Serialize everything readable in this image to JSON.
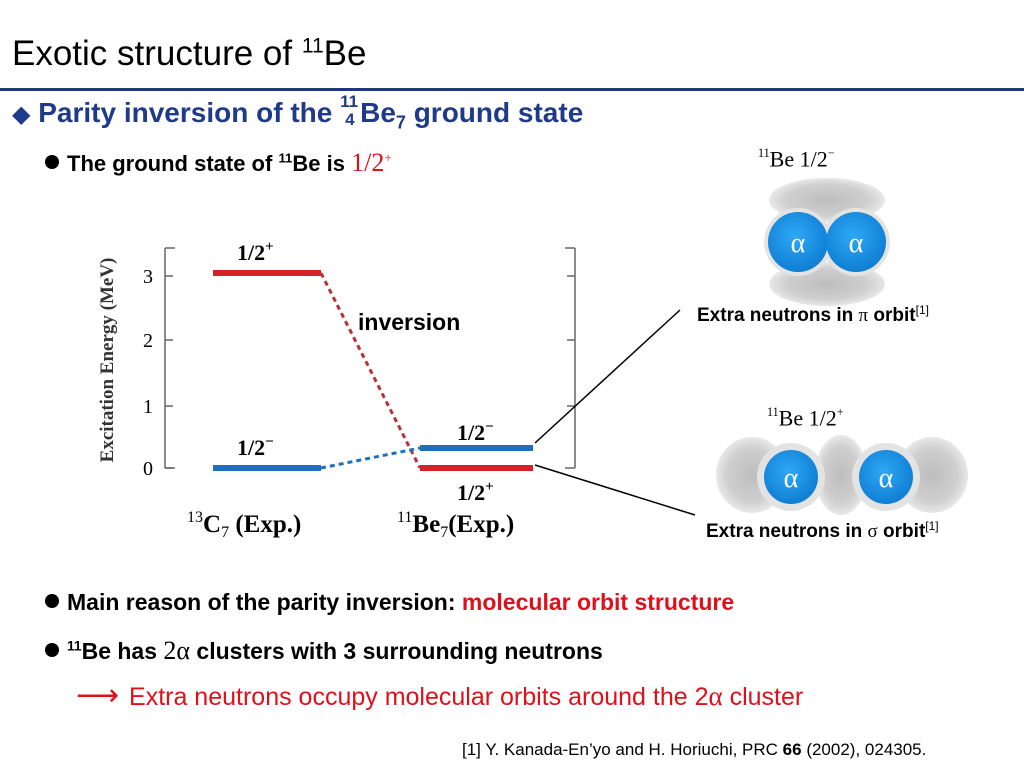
{
  "slide": {
    "title_prefix": "Exotic structure of ",
    "title_mass": "11",
    "title_element": "Be"
  },
  "heading": {
    "diamond": "◆",
    "prefix": "Parity inversion of the ",
    "mass": "11",
    "atomic": "4",
    "element": "Be",
    "neutrons": "7",
    "suffix": " ground state"
  },
  "bullet1": {
    "prefix": "The ground state of ",
    "mass": "11",
    "middle": "Be is ",
    "value": "1/2",
    "parity": "+"
  },
  "diagram": {
    "y_axis_label": "Excitation Energy (MeV)",
    "y_ticks": [
      "0",
      "1",
      "2",
      "3"
    ],
    "inversion_label": "inversion",
    "c13_levels": [
      {
        "label": "1/2",
        "parity": "+",
        "energy": 3.1,
        "color": "#d62226"
      },
      {
        "label": "1/2",
        "parity": "−",
        "energy": 0.0,
        "color": "#1f6fbf"
      }
    ],
    "be11_levels": [
      {
        "label": "1/2",
        "parity": "−",
        "energy": 0.32,
        "color": "#1f6fbf"
      },
      {
        "label": "1/2",
        "parity": "+",
        "energy": 0.0,
        "color": "#d62226"
      }
    ],
    "c13_caption": {
      "mass": "13",
      "element": "C",
      "neutrons": "7",
      "suffix": " (Exp.)"
    },
    "be11_caption": {
      "mass": "11",
      "element": "Be",
      "neutrons": "7",
      "suffix": "(Exp.)"
    }
  },
  "pi_panel": {
    "label_mass": "11",
    "label_text": "Be 1/2",
    "label_parity": "−",
    "alpha": "α",
    "caption_prefix": "Extra neutrons in ",
    "caption_symbol": "π",
    "caption_suffix": " orbit",
    "caption_ref": "[1]"
  },
  "sigma_panel": {
    "label_mass": "11",
    "label_text": "Be 1/2",
    "label_parity": "+",
    "alpha": "α",
    "caption_prefix": "Extra neutrons in ",
    "caption_symbol": "σ",
    "caption_suffix": " orbit",
    "caption_ref": "[1]"
  },
  "bullet2": {
    "prefix": "Main reason of the parity inversion: ",
    "highlight": "molecular orbit structure"
  },
  "bullet3": {
    "mass": "11",
    "prefix": "Be has ",
    "num": "2",
    "alpha": "α",
    "suffix": " clusters with 3 surrounding neutrons"
  },
  "arrow_line": {
    "arrow": "⟶",
    "text": "Extra neutrons occupy molecular orbits around the 2",
    "alpha": "α",
    "suffix": " cluster"
  },
  "reference": {
    "prefix": "[1] Y. Kanada-En’yo and H. Horiuchi, PRC ",
    "volume": "66",
    "suffix": " (2002), 024305."
  },
  "colors": {
    "title_rule": "#1e3a74",
    "heading": "#1f3a8a",
    "red_level": "#d62226",
    "blue_level": "#1f6fbf",
    "alpha_blue": "#1a8ee0",
    "highlight_red": "#e0101b"
  }
}
